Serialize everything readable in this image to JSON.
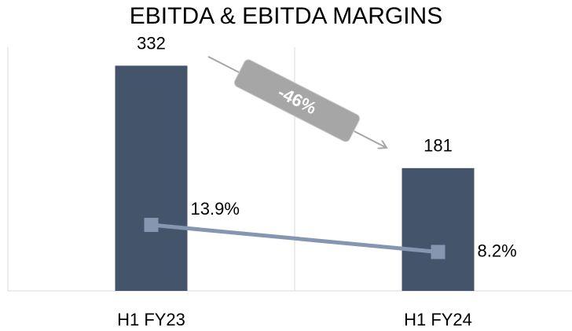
{
  "chart_data": {
    "type": "bar",
    "title": "EBITDA & EBITDA MARGINS",
    "categories": [
      "H1 FY23",
      "H1 FY24"
    ],
    "series": [
      {
        "type": "bar",
        "color": "#44546a",
        "values": [
          332,
          181
        ]
      },
      {
        "type": "line",
        "axis": "y2",
        "color": "#8496b0",
        "values": [
          13.9,
          8.2
        ],
        "value_labels": [
          "13.9%",
          "8.2%"
        ]
      }
    ],
    "ylim": [
      0,
      350
    ],
    "y2lim": [
      0,
      50
    ],
    "annotations": [
      {
        "text": "-46%"
      }
    ]
  }
}
